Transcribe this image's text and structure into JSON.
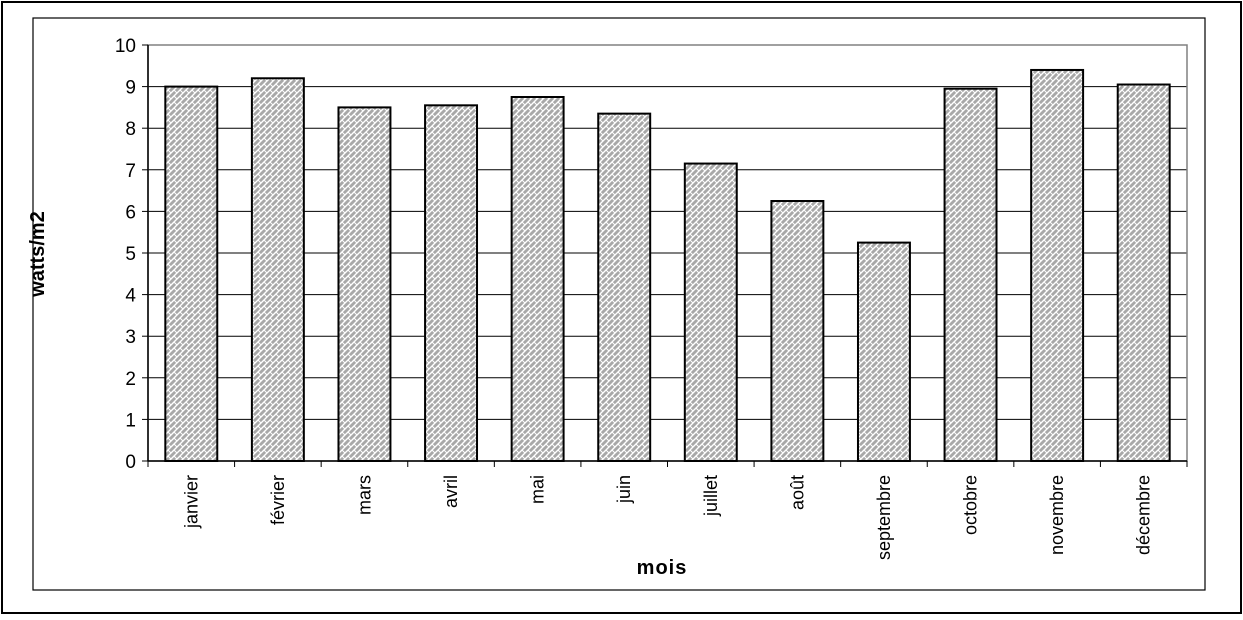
{
  "chart_data": {
    "type": "bar",
    "categories": [
      "janvier",
      "février",
      "mars",
      "avril",
      "mai",
      "juin",
      "juillet",
      "août",
      "septembre",
      "octobre",
      "novembre",
      "décembre"
    ],
    "values": [
      9.0,
      9.2,
      8.5,
      8.55,
      8.75,
      8.35,
      7.15,
      6.25,
      5.25,
      8.95,
      9.4,
      9.05
    ],
    "title": "",
    "xlabel": "mois",
    "ylabel": "watts/m2",
    "ylim": [
      0,
      10
    ],
    "yticks": [
      "0",
      "1",
      "2",
      "3",
      "4",
      "5",
      "6",
      "7",
      "8",
      "9",
      "10"
    ],
    "grid": true,
    "legend": "none",
    "colors": {
      "bar_fill": "#b0b0b0",
      "bar_pattern": "#ffffff",
      "bar_stroke": "#000000",
      "grid": "#000000",
      "plot_border": "#808080"
    }
  }
}
